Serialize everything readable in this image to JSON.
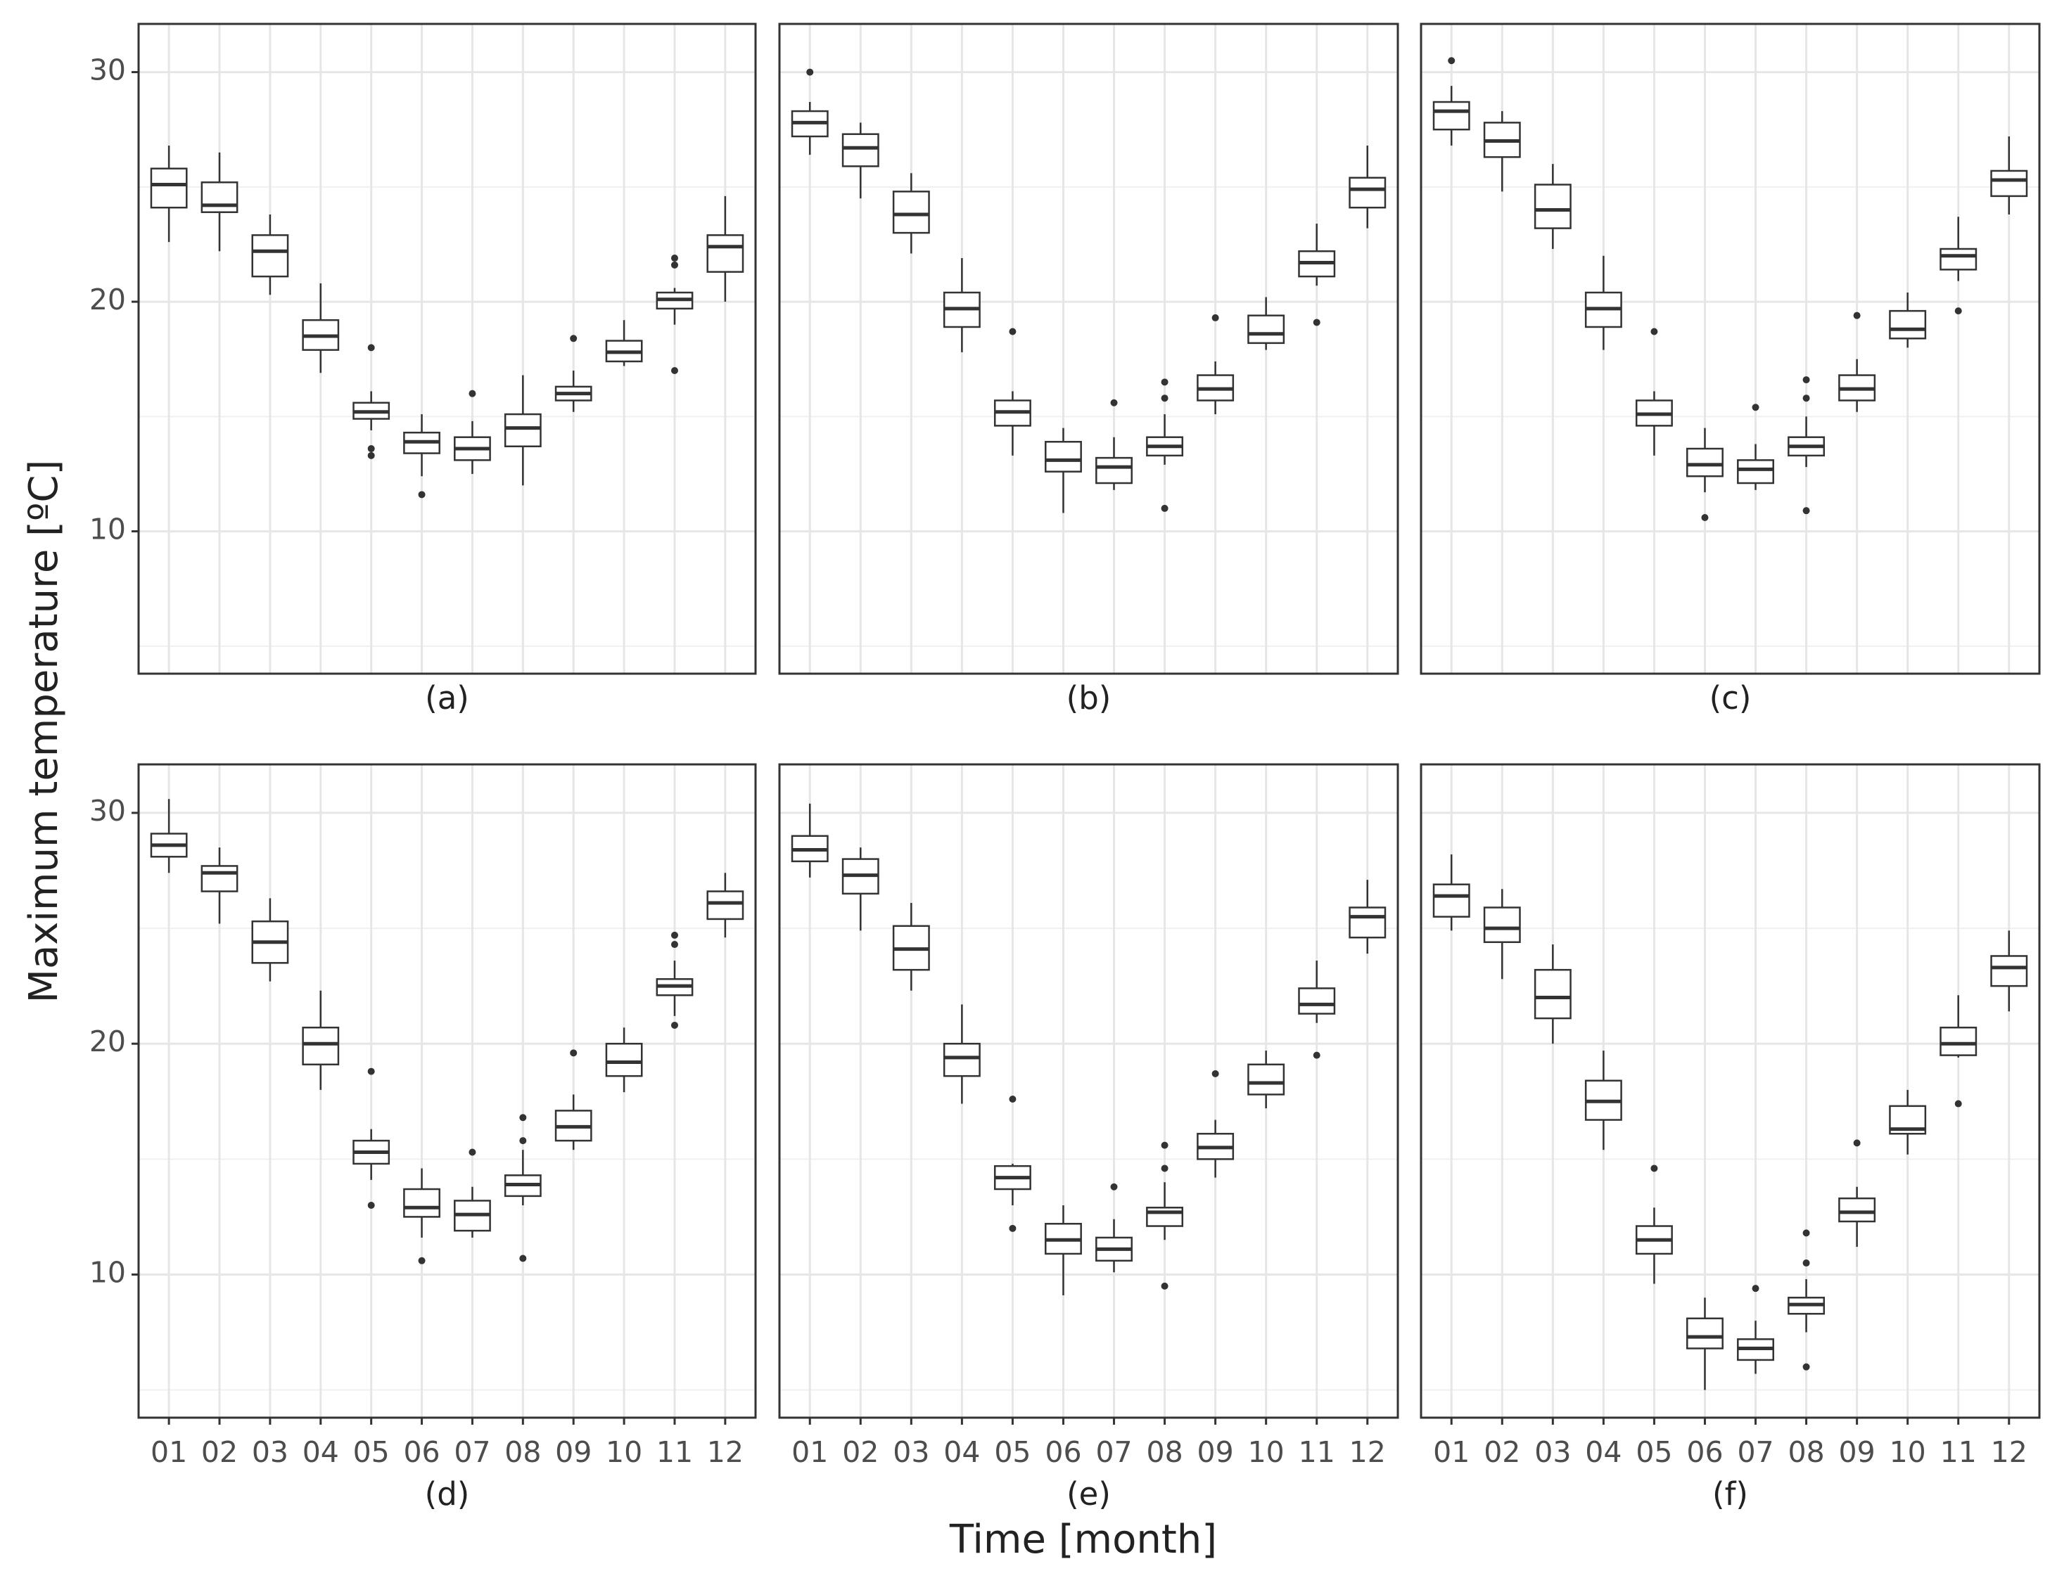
{
  "chart_data": {
    "type": "box",
    "xlabel": "Time [month]",
    "ylabel": "Maximum temperature [ºC]",
    "categories": [
      "01",
      "02",
      "03",
      "04",
      "05",
      "06",
      "07",
      "08",
      "09",
      "10",
      "11",
      "12"
    ],
    "ylim": [
      3.8,
      32.1
    ],
    "yticks": [
      10,
      20,
      30
    ],
    "minor_yticks": [
      5,
      15,
      25
    ],
    "grid": true,
    "color": "#ffffff",
    "line_color": "#333333",
    "facets": [
      {
        "title": "(a)",
        "boxes": [
          {
            "min": 22.6,
            "q1": 24.1,
            "med": 25.1,
            "q3": 25.8,
            "max": 26.8,
            "out": []
          },
          {
            "min": 22.2,
            "q1": 23.9,
            "med": 24.2,
            "q3": 25.2,
            "max": 26.5,
            "out": []
          },
          {
            "min": 20.3,
            "q1": 21.1,
            "med": 22.2,
            "q3": 22.9,
            "max": 23.8,
            "out": []
          },
          {
            "min": 16.9,
            "q1": 17.9,
            "med": 18.5,
            "q3": 19.2,
            "max": 20.8,
            "out": []
          },
          {
            "min": 14.4,
            "q1": 14.9,
            "med": 15.2,
            "q3": 15.6,
            "max": 16.1,
            "out": [
              18.0,
              13.6,
              13.3
            ]
          },
          {
            "min": 12.4,
            "q1": 13.4,
            "med": 13.9,
            "q3": 14.3,
            "max": 15.1,
            "out": [
              11.6
            ]
          },
          {
            "min": 12.5,
            "q1": 13.1,
            "med": 13.6,
            "q3": 14.1,
            "max": 14.8,
            "out": [
              16.0
            ]
          },
          {
            "min": 12.0,
            "q1": 13.7,
            "med": 14.5,
            "q3": 15.1,
            "max": 16.8,
            "out": []
          },
          {
            "min": 15.2,
            "q1": 15.7,
            "med": 16.0,
            "q3": 16.3,
            "max": 17.0,
            "out": [
              18.4
            ]
          },
          {
            "min": 17.2,
            "q1": 17.4,
            "med": 17.8,
            "q3": 18.3,
            "max": 19.2,
            "out": []
          },
          {
            "min": 19.0,
            "q1": 19.7,
            "med": 20.1,
            "q3": 20.4,
            "max": 20.6,
            "out": [
              21.9,
              21.6,
              17.0
            ]
          },
          {
            "min": 20.0,
            "q1": 21.3,
            "med": 22.4,
            "q3": 22.9,
            "max": 24.6,
            "out": []
          }
        ]
      },
      {
        "title": "(b)",
        "boxes": [
          {
            "min": 26.4,
            "q1": 27.2,
            "med": 27.8,
            "q3": 28.3,
            "max": 28.7,
            "out": [
              30.0
            ]
          },
          {
            "min": 24.5,
            "q1": 25.9,
            "med": 26.7,
            "q3": 27.3,
            "max": 27.8,
            "out": []
          },
          {
            "min": 22.1,
            "q1": 23.0,
            "med": 23.8,
            "q3": 24.8,
            "max": 25.6,
            "out": []
          },
          {
            "min": 17.8,
            "q1": 18.9,
            "med": 19.7,
            "q3": 20.4,
            "max": 21.9,
            "out": []
          },
          {
            "min": 13.3,
            "q1": 14.6,
            "med": 15.2,
            "q3": 15.7,
            "max": 16.1,
            "out": [
              18.7
            ]
          },
          {
            "min": 10.8,
            "q1": 12.6,
            "med": 13.1,
            "q3": 13.9,
            "max": 14.5,
            "out": []
          },
          {
            "min": 11.8,
            "q1": 12.1,
            "med": 12.8,
            "q3": 13.2,
            "max": 14.1,
            "out": [
              15.6
            ]
          },
          {
            "min": 12.9,
            "q1": 13.3,
            "med": 13.7,
            "q3": 14.1,
            "max": 15.1,
            "out": [
              16.5,
              15.8,
              11.0
            ]
          },
          {
            "min": 15.1,
            "q1": 15.7,
            "med": 16.2,
            "q3": 16.8,
            "max": 17.4,
            "out": [
              19.3
            ]
          },
          {
            "min": 17.9,
            "q1": 18.2,
            "med": 18.6,
            "q3": 19.4,
            "max": 20.2,
            "out": []
          },
          {
            "min": 20.7,
            "q1": 21.1,
            "med": 21.7,
            "q3": 22.2,
            "max": 23.4,
            "out": [
              19.1
            ]
          },
          {
            "min": 23.2,
            "q1": 24.1,
            "med": 24.9,
            "q3": 25.4,
            "max": 26.8,
            "out": []
          }
        ]
      },
      {
        "title": "(c)",
        "boxes": [
          {
            "min": 26.8,
            "q1": 27.5,
            "med": 28.3,
            "q3": 28.7,
            "max": 29.4,
            "out": [
              30.5
            ]
          },
          {
            "min": 24.8,
            "q1": 26.3,
            "med": 27.0,
            "q3": 27.8,
            "max": 28.3,
            "out": []
          },
          {
            "min": 22.3,
            "q1": 23.2,
            "med": 24.0,
            "q3": 25.1,
            "max": 26.0,
            "out": []
          },
          {
            "min": 17.9,
            "q1": 18.9,
            "med": 19.7,
            "q3": 20.4,
            "max": 22.0,
            "out": []
          },
          {
            "min": 13.3,
            "q1": 14.6,
            "med": 15.1,
            "q3": 15.7,
            "max": 16.1,
            "out": [
              18.7
            ]
          },
          {
            "min": 11.7,
            "q1": 12.4,
            "med": 12.9,
            "q3": 13.6,
            "max": 14.5,
            "out": [
              10.6
            ]
          },
          {
            "min": 11.8,
            "q1": 12.1,
            "med": 12.7,
            "q3": 13.1,
            "max": 13.8,
            "out": [
              15.4
            ]
          },
          {
            "min": 12.8,
            "q1": 13.3,
            "med": 13.7,
            "q3": 14.1,
            "max": 15.0,
            "out": [
              16.6,
              15.8,
              10.9
            ]
          },
          {
            "min": 15.2,
            "q1": 15.7,
            "med": 16.2,
            "q3": 16.8,
            "max": 17.5,
            "out": [
              19.4
            ]
          },
          {
            "min": 18.0,
            "q1": 18.4,
            "med": 18.8,
            "q3": 19.6,
            "max": 20.4,
            "out": []
          },
          {
            "min": 20.9,
            "q1": 21.4,
            "med": 22.0,
            "q3": 22.3,
            "max": 23.7,
            "out": [
              19.6
            ]
          },
          {
            "min": 23.8,
            "q1": 24.6,
            "med": 25.3,
            "q3": 25.7,
            "max": 27.2,
            "out": []
          }
        ]
      },
      {
        "title": "(d)",
        "boxes": [
          {
            "min": 27.4,
            "q1": 28.1,
            "med": 28.6,
            "q3": 29.1,
            "max": 30.6,
            "out": []
          },
          {
            "min": 25.2,
            "q1": 26.6,
            "med": 27.4,
            "q3": 27.7,
            "max": 28.5,
            "out": []
          },
          {
            "min": 22.7,
            "q1": 23.5,
            "med": 24.4,
            "q3": 25.3,
            "max": 26.3,
            "out": []
          },
          {
            "min": 18.0,
            "q1": 19.1,
            "med": 20.0,
            "q3": 20.7,
            "max": 22.3,
            "out": []
          },
          {
            "min": 14.1,
            "q1": 14.8,
            "med": 15.3,
            "q3": 15.8,
            "max": 16.3,
            "out": [
              18.8,
              13.0
            ]
          },
          {
            "min": 11.6,
            "q1": 12.5,
            "med": 12.9,
            "q3": 13.7,
            "max": 14.6,
            "out": [
              10.6
            ]
          },
          {
            "min": 11.6,
            "q1": 11.9,
            "med": 12.6,
            "q3": 13.2,
            "max": 13.8,
            "out": [
              15.3
            ]
          },
          {
            "min": 13.0,
            "q1": 13.4,
            "med": 13.9,
            "q3": 14.3,
            "max": 15.4,
            "out": [
              16.8,
              15.8,
              10.7
            ]
          },
          {
            "min": 15.4,
            "q1": 15.8,
            "med": 16.4,
            "q3": 17.1,
            "max": 17.8,
            "out": [
              19.6
            ]
          },
          {
            "min": 17.9,
            "q1": 18.6,
            "med": 19.2,
            "q3": 20.0,
            "max": 20.7,
            "out": []
          },
          {
            "min": 21.2,
            "q1": 22.1,
            "med": 22.5,
            "q3": 22.8,
            "max": 23.6,
            "out": [
              24.7,
              24.3,
              20.8
            ]
          },
          {
            "min": 24.6,
            "q1": 25.4,
            "med": 26.1,
            "q3": 26.6,
            "max": 27.4,
            "out": []
          }
        ]
      },
      {
        "title": "(e)",
        "boxes": [
          {
            "min": 27.2,
            "q1": 27.9,
            "med": 28.4,
            "q3": 29.0,
            "max": 30.4,
            "out": []
          },
          {
            "min": 24.9,
            "q1": 26.5,
            "med": 27.3,
            "q3": 28.0,
            "max": 28.5,
            "out": []
          },
          {
            "min": 22.3,
            "q1": 23.2,
            "med": 24.1,
            "q3": 25.1,
            "max": 26.1,
            "out": []
          },
          {
            "min": 17.4,
            "q1": 18.6,
            "med": 19.4,
            "q3": 20.0,
            "max": 21.7,
            "out": []
          },
          {
            "min": 13.0,
            "q1": 13.7,
            "med": 14.2,
            "q3": 14.7,
            "max": 14.8,
            "out": [
              17.6,
              12.0
            ]
          },
          {
            "min": 9.1,
            "q1": 10.9,
            "med": 11.5,
            "q3": 12.2,
            "max": 13.0,
            "out": []
          },
          {
            "min": 10.1,
            "q1": 10.6,
            "med": 11.1,
            "q3": 11.6,
            "max": 12.4,
            "out": [
              13.8
            ]
          },
          {
            "min": 11.5,
            "q1": 12.1,
            "med": 12.7,
            "q3": 12.9,
            "max": 14.0,
            "out": [
              15.6,
              14.6,
              9.5
            ]
          },
          {
            "min": 14.2,
            "q1": 15.0,
            "med": 15.5,
            "q3": 16.1,
            "max": 16.7,
            "out": [
              18.7
            ]
          },
          {
            "min": 17.2,
            "q1": 17.8,
            "med": 18.3,
            "q3": 19.1,
            "max": 19.7,
            "out": []
          },
          {
            "min": 20.9,
            "q1": 21.3,
            "med": 21.7,
            "q3": 22.4,
            "max": 23.6,
            "out": [
              19.5
            ]
          },
          {
            "min": 23.9,
            "q1": 24.6,
            "med": 25.5,
            "q3": 25.9,
            "max": 27.1,
            "out": []
          }
        ]
      },
      {
        "title": "(f)",
        "boxes": [
          {
            "min": 24.9,
            "q1": 25.5,
            "med": 26.4,
            "q3": 26.9,
            "max": 28.2,
            "out": []
          },
          {
            "min": 22.8,
            "q1": 24.4,
            "med": 25.0,
            "q3": 25.9,
            "max": 26.7,
            "out": []
          },
          {
            "min": 20.0,
            "q1": 21.1,
            "med": 22.0,
            "q3": 23.2,
            "max": 24.3,
            "out": []
          },
          {
            "min": 15.4,
            "q1": 16.7,
            "med": 17.5,
            "q3": 18.4,
            "max": 19.7,
            "out": []
          },
          {
            "min": 9.6,
            "q1": 10.9,
            "med": 11.5,
            "q3": 12.1,
            "max": 12.9,
            "out": [
              14.6
            ]
          },
          {
            "min": 5.0,
            "q1": 6.8,
            "med": 7.3,
            "q3": 8.1,
            "max": 9.0,
            "out": []
          },
          {
            "min": 5.7,
            "q1": 6.3,
            "med": 6.8,
            "q3": 7.2,
            "max": 8.0,
            "out": [
              9.4
            ]
          },
          {
            "min": 7.5,
            "q1": 8.3,
            "med": 8.7,
            "q3": 9.0,
            "max": 9.8,
            "out": [
              11.8,
              10.5,
              6.0
            ]
          },
          {
            "min": 11.2,
            "q1": 12.3,
            "med": 12.7,
            "q3": 13.3,
            "max": 13.8,
            "out": [
              15.7
            ]
          },
          {
            "min": 15.2,
            "q1": 16.1,
            "med": 16.3,
            "q3": 17.3,
            "max": 18.0,
            "out": []
          },
          {
            "min": 19.4,
            "q1": 19.5,
            "med": 20.0,
            "q3": 20.7,
            "max": 22.1,
            "out": [
              17.4
            ]
          },
          {
            "min": 21.4,
            "q1": 22.5,
            "med": 23.3,
            "q3": 23.8,
            "max": 24.9,
            "out": []
          }
        ]
      }
    ]
  }
}
